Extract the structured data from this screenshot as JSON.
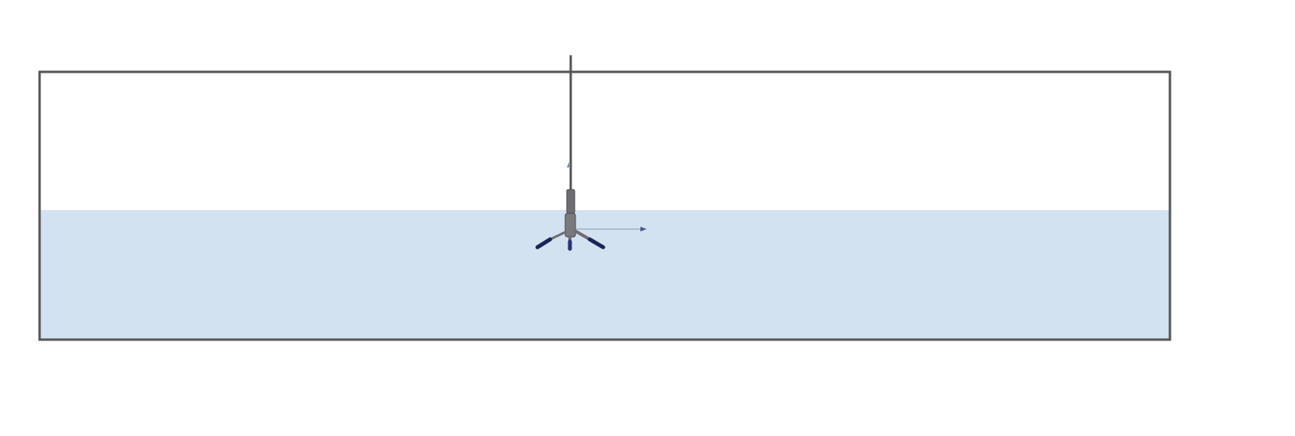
{
  "colors": {
    "background": "#ffffff",
    "water": "#d3e2f1",
    "tank_border": "#555555",
    "shaft": "#555555",
    "mixer_body": "#6e6e72",
    "blade_tip": "#1c2556",
    "flow_arrow": "#5b6b8c"
  },
  "icons": {
    "tank": "tank-outline",
    "liquid": "water-fill",
    "impeller": "propeller-icon",
    "flow": "arrow-right-icon"
  }
}
